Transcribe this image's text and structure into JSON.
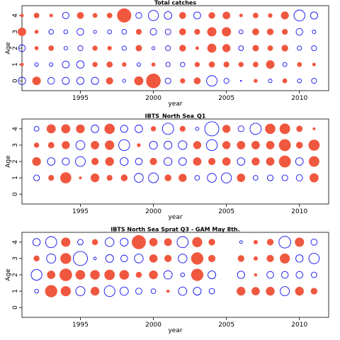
{
  "chart_data": [
    {
      "type": "scatter",
      "title": "Total catches",
      "xlabel": "year",
      "ylabel": "Age",
      "xlim": [
        1991,
        2012
      ],
      "ylim": [
        -0.6,
        4.6
      ],
      "xticks": [
        1995,
        2000,
        2005,
        2010
      ],
      "yticks": [
        0,
        1,
        2,
        3,
        4
      ],
      "legend": "none",
      "encoding": "bubble area ~ |residual|; red filled = positive, blue open = negative",
      "years": [
        1991,
        1992,
        1993,
        1994,
        1995,
        1996,
        1997,
        1998,
        1999,
        2000,
        2001,
        2002,
        2003,
        2004,
        2005,
        2006,
        2007,
        2008,
        2009,
        2010,
        2011
      ],
      "residuals": {
        "4": [
          0.3,
          0.8,
          0.3,
          -1.3,
          1.3,
          0.6,
          0.8,
          5.8,
          -1.1,
          -3.2,
          -1.8,
          1.3,
          -1.5,
          1.2,
          1.6,
          0.3,
          0.8,
          0.5,
          1.7,
          -3.7,
          -1.6
        ],
        "3": [
          2.0,
          0.4,
          -0.7,
          -0.5,
          -1.4,
          -0.3,
          -0.5,
          -0.7,
          0.9,
          -1.3,
          -1.0,
          1.3,
          0.9,
          2.4,
          2.4,
          -0.5,
          1.3,
          1.2,
          0.9,
          -1.4,
          -0.4
        ],
        "2": [
          -1.4,
          0.4,
          0.8,
          -0.4,
          -0.8,
          0.7,
          0.5,
          -0.6,
          1.1,
          -0.3,
          -0.8,
          1.2,
          0.3,
          2.3,
          1.8,
          -0.7,
          1.1,
          0.8,
          1.2,
          -0.6,
          -0.8
        ],
        "1": [
          0.3,
          -0.4,
          -0.4,
          -1.5,
          -1.7,
          0.7,
          1.0,
          0.5,
          -0.4,
          0.4,
          -0.6,
          -0.6,
          0.7,
          1.0,
          0.9,
          0.7,
          0.8,
          2.0,
          -0.5,
          0.6,
          0.3
        ],
        "0": [
          -1.7,
          2.0,
          -1.4,
          -1.6,
          -1.6,
          -1.6,
          1.4,
          -0.3,
          2.3,
          6.2,
          -1.0,
          0.7,
          1.3,
          -3.4,
          -0.8,
          0.0,
          0.4,
          -0.4,
          0.6,
          -0.5,
          -0.8
        ]
      }
    },
    {
      "type": "scatter",
      "title": "IBTS_North Sea_Q1",
      "xlabel": "year",
      "ylabel": "Age",
      "xlim": [
        1991,
        2012
      ],
      "ylim": [
        -0.6,
        4.6
      ],
      "xticks": [
        1995,
        2000,
        2005,
        2010
      ],
      "yticks": [
        0,
        1,
        2,
        3,
        4
      ],
      "legend": "none",
      "encoding": "bubble area ~ |residual|; red filled = positive, blue open = negative",
      "years": [
        1992,
        1993,
        1994,
        1995,
        1996,
        1997,
        1998,
        1999,
        2000,
        2001,
        2002,
        2003,
        2004,
        2005,
        2006,
        2007,
        2008,
        2009,
        2010,
        2011
      ],
      "residuals": {
        "4": [
          -0.4,
          1.3,
          1.3,
          1.2,
          -1.0,
          1.7,
          -0.9,
          -1.0,
          0.4,
          -2.2,
          0.5,
          -0.2,
          -3.5,
          1.0,
          -0.6,
          -2.2,
          1.7,
          1.8,
          0.6,
          0.1
        ],
        "3": [
          0.4,
          0.6,
          1.0,
          -1.4,
          1.1,
          1.4,
          -2.1,
          0.2,
          -1.1,
          -1.1,
          -1.3,
          1.0,
          -2.1,
          1.0,
          1.1,
          1.1,
          1.1,
          2.3,
          0.7,
          2.0
        ],
        "2": [
          1.2,
          -1.0,
          -0.9,
          -1.7,
          0.8,
          1.2,
          -1.1,
          -0.8,
          0.8,
          -1.1,
          -1.0,
          1.1,
          0.8,
          1.1,
          -1.0,
          1.0,
          1.1,
          2.3,
          -1.0,
          1.8
        ],
        "1": [
          -0.6,
          0.5,
          2.0,
          0.1,
          1.2,
          0.5,
          0.7,
          -1.4,
          -1.7,
          0.7,
          1.0,
          -0.4,
          -1.4,
          -1.8,
          1.1,
          -0.4,
          -0.6,
          -0.6,
          -0.7,
          1.3
        ]
      }
    },
    {
      "type": "scatter",
      "title": "IBTS North Sea Sprat Q3 - GAM May 8th.",
      "xlabel": "year",
      "ylabel": "Age",
      "xlim": [
        1991,
        2012
      ],
      "ylim": [
        -0.6,
        4.6
      ],
      "xticks": [
        1995,
        2000,
        2005,
        2010
      ],
      "yticks": [
        0,
        1,
        2,
        3,
        4
      ],
      "legend": "none",
      "encoding": "bubble area ~ |residual|; red filled = positive, blue open = negative",
      "years": [
        1992,
        1993,
        1994,
        1995,
        1996,
        1997,
        1998,
        1999,
        2000,
        2001,
        2002,
        2003,
        2004,
        2005,
        2006,
        2007,
        2008,
        2009,
        2010,
        2011
      ],
      "residuals": {
        "4": [
          -0.7,
          -1.6,
          1.0,
          -0.4,
          0.4,
          -1.0,
          -0.8,
          2.4,
          0.8,
          0.7,
          -1.6,
          1.2,
          0.5,
          null,
          -0.1,
          0.2,
          0.5,
          -1.8,
          1.0,
          -0.5
        ],
        "3": [
          0.4,
          -1.1,
          1.4,
          -2.6,
          -0.1,
          -0.8,
          -0.6,
          -1.0,
          0.8,
          0.6,
          -1.0,
          1.8,
          0.6,
          null,
          0.5,
          0.2,
          0.6,
          1.2,
          -0.7,
          -1.4
        ],
        "2": [
          -1.5,
          0.8,
          1.9,
          1.1,
          1.1,
          1.3,
          1.1,
          0.4,
          0.9,
          -0.9,
          -0.2,
          1.8,
          -0.8,
          null,
          -0.7,
          0.1,
          -0.6,
          -0.6,
          -0.6,
          -0.4
        ],
        "1": [
          -0.2,
          1.8,
          1.2,
          -1.1,
          0.9,
          -1.5,
          -0.9,
          -0.5,
          -0.3,
          0.1,
          -0.9,
          -0.8,
          -0.4,
          null,
          0.9,
          0.8,
          0.9,
          -1.1,
          0.9,
          0.5
        ]
      }
    }
  ],
  "colors": {
    "positive": "#f0573f",
    "negative": "#1010ee"
  },
  "max_radius_px": 10
}
